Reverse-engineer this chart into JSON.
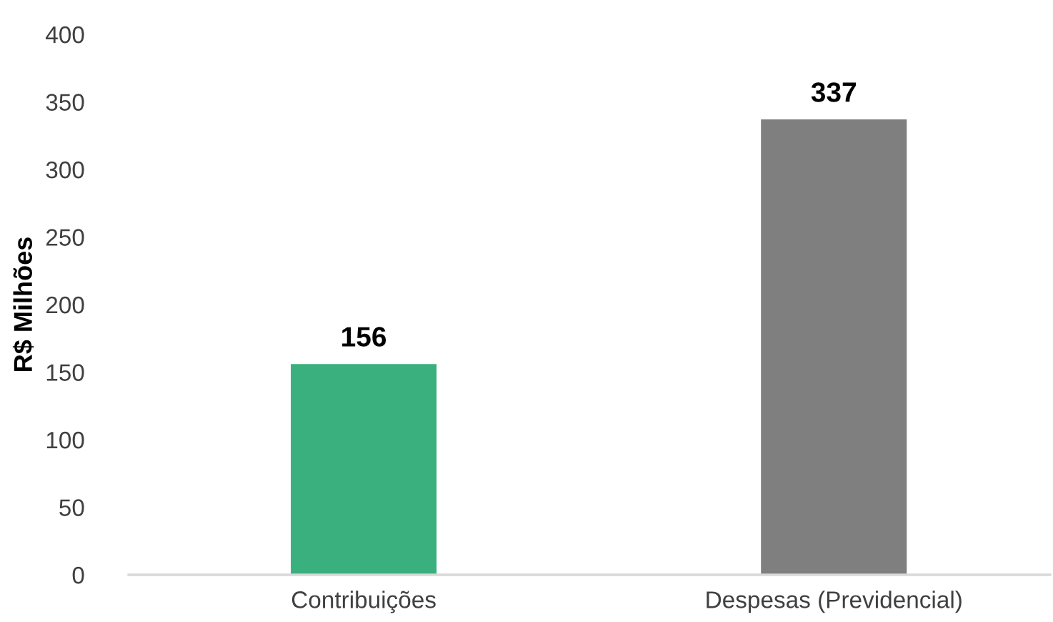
{
  "chart_data": {
    "type": "bar",
    "ylabel": "R$ Milhões",
    "categories": [
      "Contribuições",
      "Despesas (Previdencial)"
    ],
    "values": [
      156,
      337
    ],
    "colors": [
      "#39b07d",
      "#7f7f7f"
    ],
    "ylim": [
      0,
      400
    ],
    "yticks": [
      0,
      50,
      100,
      150,
      200,
      250,
      300,
      350,
      400
    ],
    "data_labels": true
  }
}
